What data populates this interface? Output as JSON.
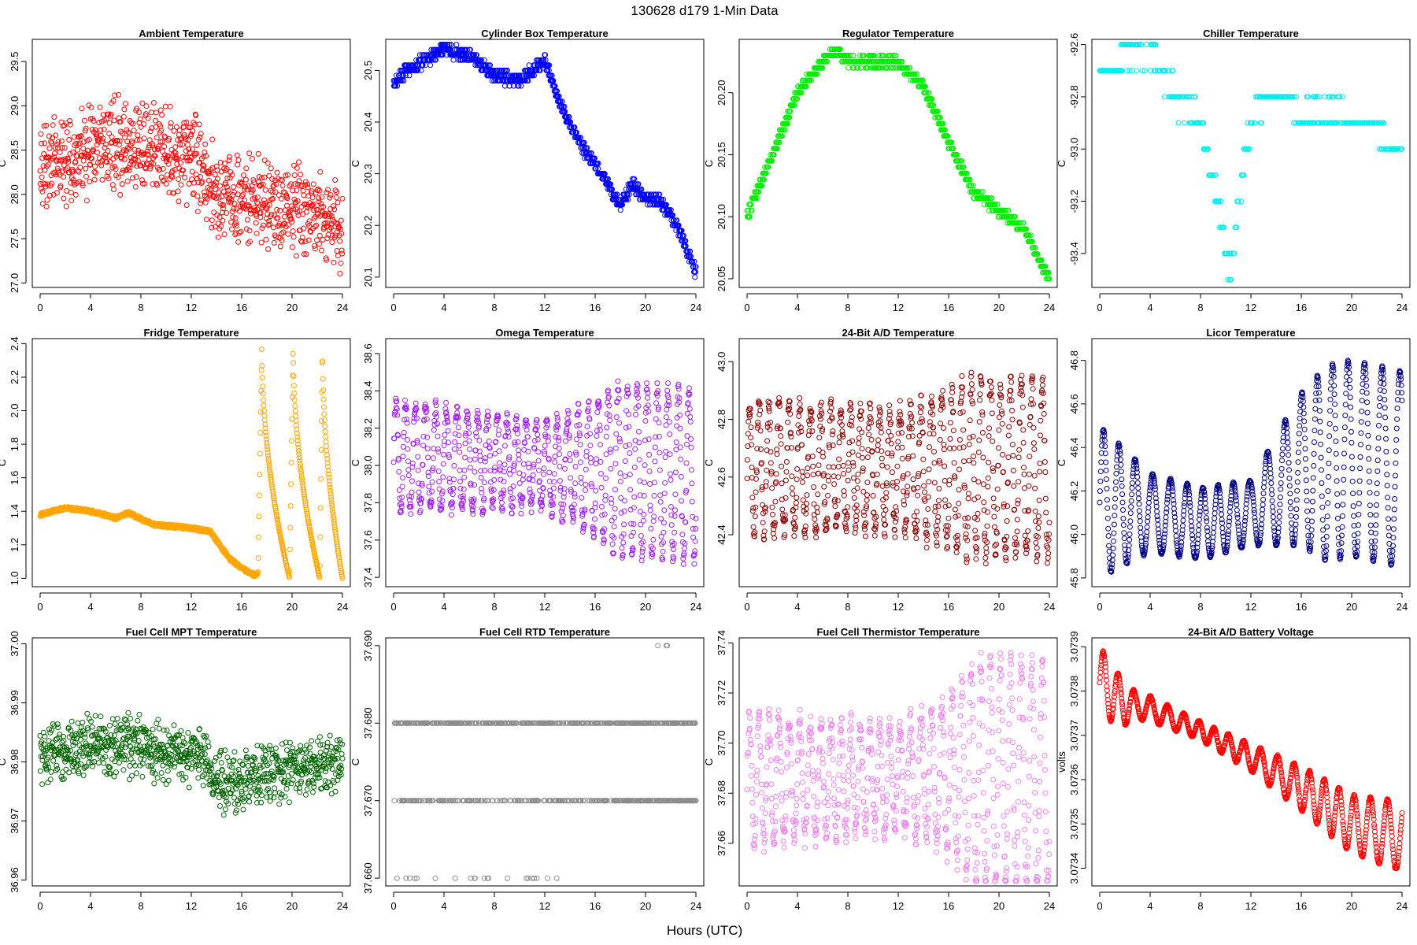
{
  "figure": {
    "title": "130628   d179   1-Min Data",
    "xlabel": "Hours (UTC)"
  },
  "chart_data": [
    {
      "type": "scatter",
      "title": "Ambient Temperature",
      "ylabel": "C",
      "color": "#ff0000",
      "xlim": [
        0,
        24
      ],
      "ylim": [
        26.95,
        29.75
      ],
      "xticks": [
        0,
        4,
        8,
        12,
        16,
        20,
        24
      ],
      "yticks": [
        27.0,
        27.5,
        28.0,
        28.5,
        29.0,
        29.5
      ],
      "ytick_labels": [
        "27.0",
        "27.5",
        "28.0",
        "28.5",
        "29.0",
        "29.5"
      ],
      "gen": {
        "kind": "noise",
        "trend": [
          [
            0,
            28.3
          ],
          [
            6,
            28.55
          ],
          [
            12,
            28.45
          ],
          [
            14,
            28.0
          ],
          [
            18,
            27.9
          ],
          [
            22,
            27.8
          ],
          [
            24,
            27.6
          ]
        ],
        "amp": 0.6,
        "range": [
          27.0,
          29.65
        ]
      }
    },
    {
      "type": "scatter",
      "title": "Cylinder Box Temperature",
      "ylabel": "C",
      "color": "#0000ff",
      "xlim": [
        0,
        24
      ],
      "ylim": [
        20.08,
        20.56
      ],
      "xticks": [
        0,
        4,
        8,
        12,
        16,
        20,
        24
      ],
      "yticks": [
        20.1,
        20.2,
        20.3,
        20.4,
        20.5
      ],
      "ytick_labels": [
        "20.1",
        "20.2",
        "20.3",
        "20.4",
        "20.5"
      ],
      "gen": {
        "kind": "trend",
        "trend": [
          [
            0,
            20.47
          ],
          [
            1,
            20.5
          ],
          [
            4,
            20.54
          ],
          [
            6,
            20.53
          ],
          [
            8,
            20.49
          ],
          [
            10,
            20.48
          ],
          [
            12,
            20.52
          ],
          [
            13.5,
            20.42
          ],
          [
            15,
            20.35
          ],
          [
            16.5,
            20.3
          ],
          [
            18,
            20.24
          ],
          [
            19,
            20.28
          ],
          [
            20,
            20.25
          ],
          [
            21,
            20.25
          ],
          [
            22,
            20.22
          ],
          [
            23,
            20.17
          ],
          [
            24,
            20.11
          ]
        ],
        "amp": 0.012,
        "step": 0.01,
        "range": [
          20.1,
          20.55
        ]
      }
    },
    {
      "type": "scatter",
      "title": "Regulator Temperature",
      "ylabel": "C",
      "color": "#00ee00",
      "xlim": [
        0,
        24
      ],
      "ylim": [
        20.043,
        20.243
      ],
      "xticks": [
        0,
        4,
        8,
        12,
        16,
        20,
        24
      ],
      "yticks": [
        20.05,
        20.1,
        20.15,
        20.2
      ],
      "ytick_labels": [
        "20.05",
        "20.10",
        "20.15",
        "20.20"
      ],
      "gen": {
        "kind": "trend",
        "trend": [
          [
            0,
            20.1
          ],
          [
            2,
            20.15
          ],
          [
            4,
            20.2
          ],
          [
            6,
            20.225
          ],
          [
            7,
            20.235
          ],
          [
            8,
            20.225
          ],
          [
            12,
            20.225
          ],
          [
            14,
            20.205
          ],
          [
            16,
            20.16
          ],
          [
            18,
            20.12
          ],
          [
            20,
            20.105
          ],
          [
            22,
            20.09
          ],
          [
            24,
            20.05
          ]
        ],
        "amp": 0.004,
        "step": 0.005,
        "range": [
          20.05,
          20.235
        ]
      }
    },
    {
      "type": "scatter",
      "title": "Chiller Temperature",
      "ylabel": "C",
      "color": "#00eeee",
      "xlim": [
        0,
        24
      ],
      "ylim": [
        -93.53,
        -92.58
      ],
      "xticks": [
        0,
        4,
        8,
        12,
        16,
        20,
        24
      ],
      "yticks": [
        -93.4,
        -93.2,
        -93.0,
        -92.8,
        -92.6
      ],
      "ytick_labels": [
        "-93.4",
        "-93.2",
        "-93.0",
        "-92.8",
        "-92.6"
      ],
      "gen": {
        "kind": "sparse",
        "trend": [
          [
            0,
            -92.7
          ],
          [
            1.5,
            -92.7
          ],
          [
            2,
            -92.62
          ],
          [
            4.5,
            -92.62
          ],
          [
            5,
            -92.7
          ],
          [
            6,
            -92.8
          ],
          [
            8,
            -92.9
          ],
          [
            9,
            -93.1
          ],
          [
            10,
            -93.4
          ],
          [
            10.5,
            -93.45
          ],
          [
            11,
            -93.2
          ],
          [
            12,
            -92.9
          ],
          [
            13,
            -92.8
          ],
          [
            15,
            -92.8
          ],
          [
            16,
            -92.9
          ],
          [
            18,
            -92.85
          ],
          [
            20,
            -92.9
          ],
          [
            22,
            -92.9
          ],
          [
            22.8,
            -93.0
          ],
          [
            24,
            -93.0
          ]
        ],
        "amp": 0.05,
        "step": 0.1,
        "range": [
          -93.5,
          -92.6
        ]
      }
    },
    {
      "type": "scatter",
      "title": "Fridge Temperature",
      "ylabel": "C",
      "color": "#ffa500",
      "xlim": [
        0,
        24
      ],
      "ylim": [
        0.95,
        2.43
      ],
      "xticks": [
        0,
        4,
        8,
        12,
        16,
        20,
        24
      ],
      "yticks": [
        1.0,
        1.2,
        1.4,
        1.6,
        1.8,
        2.0,
        2.2,
        2.4
      ],
      "ytick_labels": [
        "1.0",
        "1.2",
        "1.4",
        "1.6",
        "1.8",
        "2.0",
        "2.2",
        "2.4"
      ],
      "gen": {
        "kind": "fridge",
        "trend": [
          [
            0,
            1.38
          ],
          [
            2,
            1.42
          ],
          [
            4,
            1.4
          ],
          [
            6,
            1.36
          ],
          [
            7,
            1.39
          ],
          [
            9,
            1.32
          ],
          [
            12,
            1.3
          ],
          [
            13.5,
            1.28
          ],
          [
            15,
            1.12
          ],
          [
            16,
            1.06
          ],
          [
            17,
            1.02
          ],
          [
            17.3,
            1.03
          ]
        ],
        "cycles": [
          [
            17.3,
            19.8
          ],
          [
            19.8,
            22.2
          ],
          [
            22.2,
            24
          ]
        ],
        "range": [
          1.0,
          2.4
        ]
      }
    },
    {
      "type": "scatter",
      "title": "Omega Temperature",
      "ylabel": "C",
      "color": "#a020f0",
      "xlim": [
        0,
        24
      ],
      "ylim": [
        37.35,
        38.68
      ],
      "xticks": [
        0,
        4,
        8,
        12,
        16,
        20,
        24
      ],
      "yticks": [
        37.4,
        37.6,
        37.8,
        38.0,
        38.2,
        38.4,
        38.6
      ],
      "ytick_labels": [
        "37.4",
        "37.6",
        "37.8",
        "38.0",
        "38.2",
        "38.4",
        "38.6"
      ],
      "gen": {
        "kind": "osc",
        "trend": [
          [
            0,
            38.05
          ],
          [
            12,
            38.0
          ],
          [
            24,
            37.95
          ]
        ],
        "amps": [
          [
            0,
            0.3
          ],
          [
            12,
            0.22
          ],
          [
            16,
            0.35
          ],
          [
            18,
            0.45
          ],
          [
            24,
            0.45
          ]
        ],
        "period": 0.8,
        "noise": 0.04,
        "range": [
          37.4,
          38.65
        ]
      }
    },
    {
      "type": "scatter",
      "title": "24-Bit A/D Temperature",
      "ylabel": "C",
      "color": "#8b0000",
      "xlim": [
        0,
        24
      ],
      "ylim": [
        42.22,
        43.08
      ],
      "xticks": [
        0,
        4,
        8,
        12,
        16,
        20,
        24
      ],
      "yticks": [
        42.4,
        42.6,
        42.8,
        43.0
      ],
      "ytick_labels": [
        "42.4",
        "42.6",
        "42.8",
        "43.0"
      ],
      "gen": {
        "kind": "osc",
        "trend": [
          [
            0,
            42.63
          ],
          [
            24,
            42.63
          ]
        ],
        "amps": [
          [
            0,
            0.22
          ],
          [
            12,
            0.2
          ],
          [
            18,
            0.3
          ],
          [
            24,
            0.3
          ]
        ],
        "period": 0.8,
        "noise": 0.04,
        "range": [
          42.25,
          43.05
        ]
      }
    },
    {
      "type": "scatter",
      "title": "Licor Temperature",
      "ylabel": "C",
      "color": "#000080",
      "xlim": [
        0,
        24
      ],
      "ylim": [
        45.76,
        46.9
      ],
      "xticks": [
        0,
        4,
        8,
        12,
        16,
        20,
        24
      ],
      "yticks": [
        45.8,
        46.0,
        46.2,
        46.4,
        46.6,
        46.8
      ],
      "ytick_labels": [
        "45.8",
        "46.0",
        "46.2",
        "46.4",
        "46.6",
        "46.8"
      ],
      "gen": {
        "kind": "osc",
        "trend": [
          [
            0,
            46.15
          ],
          [
            4,
            46.1
          ],
          [
            8,
            46.05
          ],
          [
            12,
            46.1
          ],
          [
            16,
            46.3
          ],
          [
            20,
            46.35
          ],
          [
            24,
            46.3
          ]
        ],
        "amps": [
          [
            0,
            0.35
          ],
          [
            4,
            0.18
          ],
          [
            12,
            0.15
          ],
          [
            15,
            0.3
          ],
          [
            18,
            0.45
          ],
          [
            24,
            0.45
          ]
        ],
        "period": 1.3,
        "noise": 0.004,
        "range": [
          45.8,
          46.87
        ]
      }
    },
    {
      "type": "scatter",
      "title": "Fuel Cell MPT Temperature",
      "ylabel": "C",
      "color": "#006400",
      "xlim": [
        0,
        24
      ],
      "ylim": [
        36.959,
        37.001
      ],
      "xticks": [
        0,
        4,
        8,
        12,
        16,
        20,
        24
      ],
      "yticks": [
        36.96,
        36.97,
        36.98,
        36.99,
        37.0
      ],
      "ytick_labels": [
        "36.96",
        "36.97",
        "36.98",
        "36.99",
        "37.00"
      ],
      "gen": {
        "kind": "noise",
        "trend": [
          [
            0,
            36.981
          ],
          [
            6,
            36.983
          ],
          [
            12,
            36.981
          ],
          [
            15,
            36.976
          ],
          [
            18,
            36.978
          ],
          [
            24,
            36.98
          ]
        ],
        "amp": 0.006,
        "range": [
          36.961,
          37.0
        ]
      }
    },
    {
      "type": "scatter",
      "title": "Fuel Cell RTD Temperature",
      "ylabel": "C",
      "color": "#8c8c8c",
      "xlim": [
        0,
        24
      ],
      "ylim": [
        37.659,
        37.691
      ],
      "xticks": [
        0,
        4,
        8,
        12,
        16,
        20,
        24
      ],
      "yticks": [
        37.66,
        37.67,
        37.68,
        37.69
      ],
      "ytick_labels": [
        "37.660",
        "37.670",
        "37.680",
        "37.690"
      ],
      "gen": {
        "kind": "levels",
        "levels": [
          37.66,
          37.67,
          37.68,
          37.69
        ],
        "range": [
          37.66,
          37.69
        ]
      }
    },
    {
      "type": "scatter",
      "title": "Fuel Cell Thermistor Temperature",
      "ylabel": "C",
      "color": "#ee82ee",
      "xlim": [
        0,
        24
      ],
      "ylim": [
        37.643,
        37.742
      ],
      "xticks": [
        0,
        4,
        8,
        12,
        16,
        20,
        24
      ],
      "yticks": [
        37.66,
        37.68,
        37.7,
        37.72,
        37.74
      ],
      "ytick_labels": [
        "37.66",
        "37.68",
        "37.70",
        "37.72",
        "37.74"
      ],
      "gen": {
        "kind": "osc",
        "trend": [
          [
            0,
            37.685
          ],
          [
            24,
            37.688
          ]
        ],
        "amps": [
          [
            0,
            0.025
          ],
          [
            12,
            0.02
          ],
          [
            16,
            0.03
          ],
          [
            18,
            0.045
          ],
          [
            24,
            0.045
          ]
        ],
        "period": 0.8,
        "noise": 0.005,
        "range": [
          37.645,
          37.736
        ]
      }
    },
    {
      "type": "scatter",
      "title": "24-Bit A/D Battery Voltage",
      "ylabel": "volts",
      "color": "#ff0000",
      "xlim": [
        0,
        24
      ],
      "ylim": [
        3.07336,
        3.07392
      ],
      "xticks": [
        0,
        4,
        8,
        12,
        16,
        20,
        24
      ],
      "yticks": [
        3.0734,
        3.0735,
        3.0736,
        3.0737,
        3.0738,
        3.0739
      ],
      "ytick_labels": [
        "3.0734",
        "3.0735",
        "3.0736",
        "3.0737",
        "3.0738",
        "3.0739"
      ],
      "gen": {
        "kind": "osc",
        "trend": [
          [
            0,
            3.07382
          ],
          [
            2,
            3.07377
          ],
          [
            4,
            3.07376
          ],
          [
            8,
            3.07371
          ],
          [
            12,
            3.07365
          ],
          [
            16,
            3.07358
          ],
          [
            20,
            3.0735
          ],
          [
            24,
            3.07347
          ]
        ],
        "amps": [
          [
            0,
            8e-05
          ],
          [
            3,
            3e-05
          ],
          [
            8,
            2e-05
          ],
          [
            12,
            3e-05
          ],
          [
            16,
            5e-05
          ],
          [
            24,
            8e-05
          ]
        ],
        "period": 1.25,
        "noise": 2e-06,
        "range": [
          3.0734,
          3.0739
        ]
      }
    }
  ]
}
